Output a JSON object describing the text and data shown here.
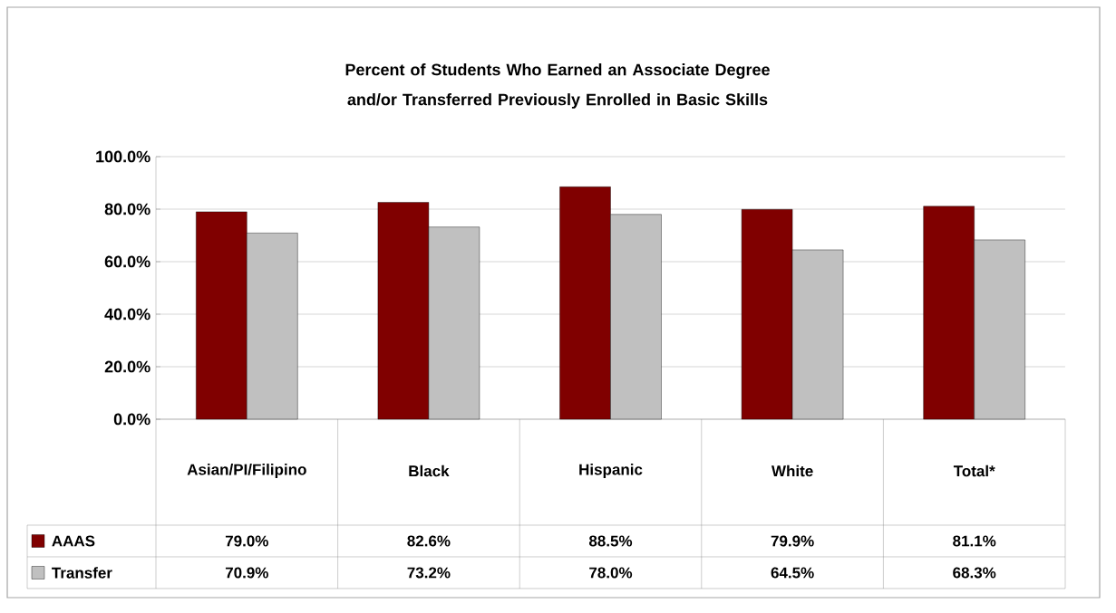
{
  "chart_data": {
    "type": "bar",
    "title": "Percent of Students Who Earned an Associate Degree and/or Transferred Previously Enrolled in Basic Skills",
    "categories": [
      "Asian/PI/Filipino",
      "Black",
      "Hispanic",
      "White",
      "Total*"
    ],
    "series": [
      {
        "name": "AAAS",
        "color": "#800000",
        "values": [
          79.0,
          82.6,
          88.5,
          79.9,
          81.1
        ],
        "value_labels": [
          "79.0%",
          "82.6%",
          "88.5%",
          "79.9%",
          "81.1%"
        ]
      },
      {
        "name": "Transfer",
        "color": "#c0c0c0",
        "values": [
          70.9,
          73.2,
          78.0,
          64.5,
          68.3
        ],
        "value_labels": [
          "70.9%",
          "73.2%",
          "78.0%",
          "64.5%",
          "68.3%"
        ]
      }
    ],
    "ylim": [
      0,
      100
    ],
    "yticks": [
      {
        "value": 0,
        "label": "0.0%"
      },
      {
        "value": 20,
        "label": "20.0%"
      },
      {
        "value": 40,
        "label": "40.0%"
      },
      {
        "value": 60,
        "label": "60.0%"
      },
      {
        "value": 80,
        "label": "80.0%"
      },
      {
        "value": 100,
        "label": "100.0%"
      }
    ],
    "grid": "y",
    "legend": "bottom left"
  }
}
